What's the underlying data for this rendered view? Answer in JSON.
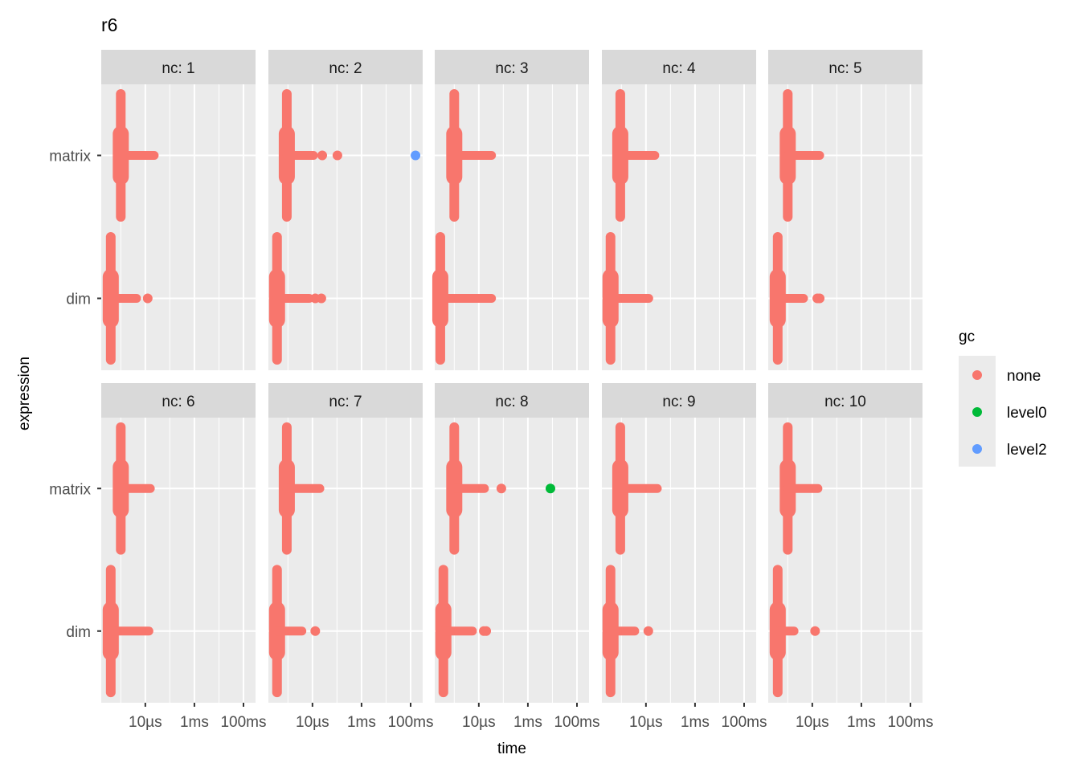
{
  "chart_data": {
    "type": "scatter",
    "title": "r6",
    "xlabel": "time",
    "ylabel": "expression",
    "x_scale": "log10",
    "xlim_seconds": [
      1.6e-07,
      0.31
    ],
    "x_major_ticks": [
      {
        "value": 1e-05,
        "label": "10µs"
      },
      {
        "value": 0.001,
        "label": "1ms"
      },
      {
        "value": 0.1,
        "label": "100ms"
      }
    ],
    "x_minor_ticks": [
      1e-06,
      0.0001,
      0.01
    ],
    "categories": [
      "matrix",
      "dim"
    ],
    "facet_prefix": "nc: ",
    "grid": true,
    "legend": {
      "title": "gc",
      "placement": "right",
      "entries": [
        {
          "label": "none",
          "color": "#F8766D"
        },
        {
          "label": "level0",
          "color": "#00BA38"
        },
        {
          "label": "level2",
          "color": "#619CFF"
        }
      ]
    },
    "panels": [
      {
        "nc": "1",
        "matrix": {
          "median": 1e-06,
          "tail_max": 2.3e-05,
          "outliers": []
        },
        "dim": {
          "median": 3.9e-07,
          "tail_max": 4.4e-06,
          "outliers": [
            1.25e-05
          ]
        }
      },
      {
        "nc": "2",
        "matrix": {
          "median": 9e-07,
          "tail_max": 1.1e-05,
          "outliers": [
            2.5e-05,
            0.000104
          ]
        },
        "dim": {
          "median": 3.6e-07,
          "tail_max": 7.4e-06,
          "outliers": [
            1.3e-05,
            2.3e-05
          ]
        }
      },
      {
        "nc": "3",
        "matrix": {
          "median": 1e-06,
          "tail_max": 3.3e-05,
          "outliers": []
        },
        "dim": {
          "median": 2.7e-07,
          "tail_max": 3.3e-05,
          "outliers": []
        }
      },
      {
        "nc": "4",
        "matrix": {
          "median": 9e-07,
          "tail_max": 2.3e-05,
          "outliers": []
        },
        "dim": {
          "median": 3.6e-07,
          "tail_max": 1.3e-05,
          "outliers": []
        }
      },
      {
        "nc": "5",
        "matrix": {
          "median": 1e-06,
          "tail_max": 2e-05,
          "outliers": []
        },
        "dim": {
          "median": 3.9e-07,
          "tail_max": 4.4e-06,
          "outliers": [
            1.6e-05,
            2e-05
          ]
        }
      },
      {
        "nc": "6",
        "matrix": {
          "median": 1e-06,
          "tail_max": 1.6e-05,
          "outliers": []
        },
        "dim": {
          "median": 3.9e-07,
          "tail_max": 1.4e-05,
          "outliers": []
        }
      },
      {
        "nc": "7",
        "matrix": {
          "median": 9e-07,
          "tail_max": 2e-05,
          "outliers": []
        },
        "dim": {
          "median": 3.6e-07,
          "tail_max": 3.7e-06,
          "outliers": [
            1.3e-05
          ]
        }
      },
      {
        "nc": "8",
        "matrix": {
          "median": 1e-06,
          "tail_max": 1.7e-05,
          "outliers": [
            8.3e-05
          ]
        },
        "dim": {
          "median": 3.6e-07,
          "tail_max": 5.5e-06,
          "outliers": [
            1.6e-05,
            2e-05
          ]
        }
      },
      {
        "nc": "9",
        "matrix": {
          "median": 9e-07,
          "tail_max": 2.9e-05,
          "outliers": []
        },
        "dim": {
          "median": 3.6e-07,
          "tail_max": 3.5e-06,
          "outliers": [
            1.25e-05
          ]
        }
      },
      {
        "nc": "10",
        "matrix": {
          "median": 1e-06,
          "tail_max": 1.7e-05,
          "outliers": []
        },
        "dim": {
          "median": 3.9e-07,
          "tail_max": 1.8e-06,
          "outliers": [
            1.3e-05
          ]
        }
      }
    ],
    "gc_points": [
      {
        "nc": "2",
        "expression": "matrix",
        "time": 0.158,
        "gc": "level2"
      },
      {
        "nc": "8",
        "expression": "matrix",
        "time": 0.0083,
        "gc": "level0"
      }
    ]
  }
}
